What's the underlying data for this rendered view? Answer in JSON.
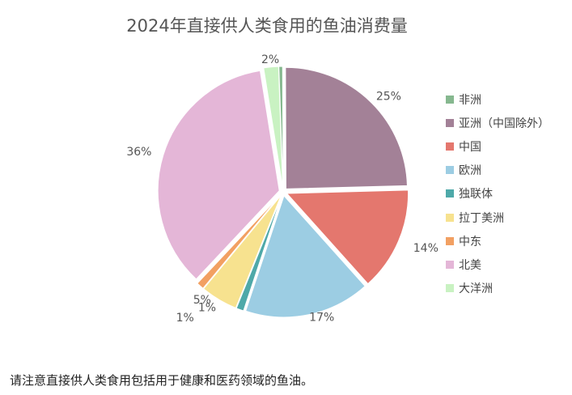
{
  "chart_data": {
    "type": "pie",
    "title": "2024年直接供人类食用的鱼油消费量",
    "categories": [
      "非洲",
      "亚洲（中国除外）",
      "中国",
      "欧洲",
      "独联体",
      "拉丁美洲",
      "中东",
      "北美",
      "大洋洲"
    ],
    "values": [
      0.5,
      25,
      14,
      17,
      1,
      5,
      1,
      36,
      2
    ],
    "value_labels": [
      "",
      "25%",
      "14%",
      "17%",
      "1%",
      "5%",
      "1%",
      "36%",
      "2%"
    ],
    "colors": [
      "#86b88f",
      "#a38197",
      "#e4776e",
      "#9ccde3",
      "#4ea9a9",
      "#f7e28f",
      "#f2a062",
      "#e4b6d7",
      "#c9f2c2"
    ],
    "legend_position": "right",
    "exploded": true
  },
  "footnote": "请注意直接供人类食用包括用于健康和医药领域的鱼油。"
}
